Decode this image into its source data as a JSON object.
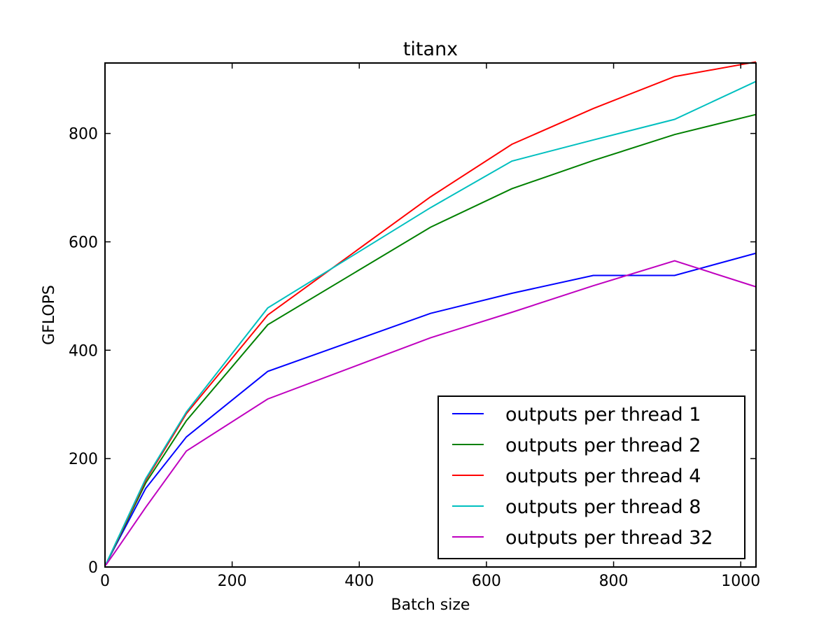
{
  "chart_data": {
    "type": "line",
    "title": "titanx",
    "xlabel": "Batch size",
    "ylabel": "GFLOPS",
    "xlim": [
      0,
      1024
    ],
    "ylim": [
      0,
      930
    ],
    "xticks": [
      0,
      200,
      400,
      600,
      800,
      1000
    ],
    "yticks": [
      0,
      200,
      400,
      600,
      800
    ],
    "grid": false,
    "legend_position": "lower-right",
    "x": [
      1,
      16,
      64,
      128,
      256,
      512,
      640,
      768,
      896,
      1024
    ],
    "series": [
      {
        "name": "outputs per thread 1",
        "color": "#0000ff",
        "values": [
          4,
          38,
          145,
          240,
          361,
          468,
          505,
          538,
          538,
          579
        ]
      },
      {
        "name": "outputs per thread 2",
        "color": "#008000",
        "values": [
          4,
          40,
          155,
          270,
          447,
          627,
          698,
          750,
          798,
          835
        ]
      },
      {
        "name": "outputs per thread 4",
        "color": "#ff0000",
        "values": [
          4,
          41,
          160,
          283,
          465,
          683,
          780,
          846,
          905,
          932
        ]
      },
      {
        "name": "outputs per thread 8",
        "color": "#00bfbf",
        "values": [
          4,
          42,
          163,
          286,
          478,
          663,
          749,
          788,
          826,
          896
        ]
      },
      {
        "name": "outputs per thread 32",
        "color": "#bf00bf",
        "values": [
          3,
          28,
          110,
          214,
          310,
          423,
          470,
          519,
          565,
          517
        ]
      }
    ]
  }
}
